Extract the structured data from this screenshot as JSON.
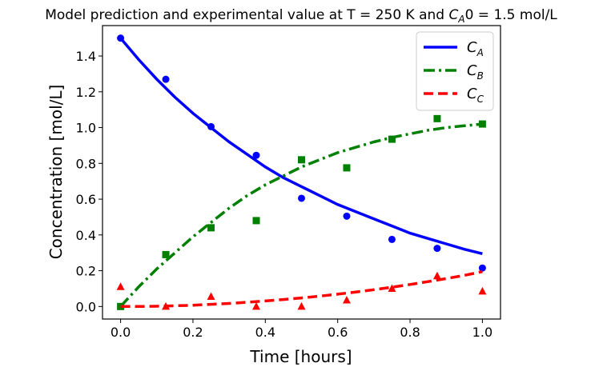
{
  "chart_data": {
    "type": "line",
    "title": "Model prediction and experimental value at T = 250 K and C_A0 = 1.5 mol/L",
    "title_parts": {
      "prefix": "Model prediction and experimental value at T = 250 K and ",
      "sym": "C",
      "sub": "A",
      "suffix": "0 = 1.5 mol/L"
    },
    "xlabel": "Time [hours]",
    "ylabel": "Concentration [mol/L]",
    "xlim": [
      -0.05,
      1.05
    ],
    "ylim": [
      -0.07,
      1.57
    ],
    "xticks": [
      0.0,
      0.2,
      0.4,
      0.6,
      0.8,
      1.0
    ],
    "xtick_labels": [
      "0.0",
      "0.2",
      "0.4",
      "0.6",
      "0.8",
      "1.0"
    ],
    "yticks": [
      0.0,
      0.2,
      0.4,
      0.6,
      0.8,
      1.0,
      1.2,
      1.4
    ],
    "ytick_labels": [
      "0.0",
      "0.2",
      "0.4",
      "0.6",
      "0.8",
      "1.0",
      "1.2",
      "1.4"
    ],
    "grid": false,
    "legend_position": "top-right",
    "model_x": [
      0.0,
      0.05,
      0.1,
      0.15,
      0.2,
      0.25,
      0.3,
      0.35,
      0.4,
      0.45,
      0.5,
      0.55,
      0.6,
      0.65,
      0.7,
      0.75,
      0.8,
      0.85,
      0.9,
      0.95,
      1.0
    ],
    "series": [
      {
        "name": "C_A",
        "sym": "C",
        "sub": "A",
        "color": "#0000ff",
        "dash": "solid",
        "marker": "circle",
        "model_y": [
          1.5,
          1.38,
          1.27,
          1.17,
          1.08,
          1.0,
          0.92,
          0.85,
          0.78,
          0.72,
          0.67,
          0.62,
          0.57,
          0.53,
          0.49,
          0.45,
          0.41,
          0.38,
          0.35,
          0.32,
          0.295
        ],
        "exp_x": [
          0.0,
          0.125,
          0.25,
          0.375,
          0.5,
          0.625,
          0.75,
          0.875,
          1.0
        ],
        "exp_y": [
          1.5,
          1.27,
          1.005,
          0.845,
          0.605,
          0.505,
          0.375,
          0.325,
          0.215
        ]
      },
      {
        "name": "C_B",
        "sym": "C",
        "sub": "B",
        "color": "#008000",
        "dash": "dashdot",
        "marker": "square",
        "model_y": [
          0.0,
          0.11,
          0.21,
          0.3,
          0.39,
          0.47,
          0.55,
          0.62,
          0.68,
          0.73,
          0.78,
          0.82,
          0.86,
          0.89,
          0.92,
          0.945,
          0.965,
          0.985,
          1.0,
          1.01,
          1.02
        ],
        "exp_x": [
          0.0,
          0.125,
          0.25,
          0.375,
          0.5,
          0.625,
          0.75,
          0.875,
          1.0
        ],
        "exp_y": [
          0.0,
          0.29,
          0.44,
          0.48,
          0.82,
          0.775,
          0.935,
          1.05,
          1.02
        ]
      },
      {
        "name": "C_C",
        "sym": "C",
        "sub": "C",
        "color": "#ff0000",
        "dash": "dashed",
        "marker": "triangle",
        "model_y": [
          0.0,
          0.0003,
          0.0015,
          0.004,
          0.007,
          0.012,
          0.017,
          0.024,
          0.031,
          0.039,
          0.048,
          0.058,
          0.069,
          0.081,
          0.094,
          0.108,
          0.123,
          0.139,
          0.156,
          0.174,
          0.195
        ],
        "exp_x": [
          0.0,
          0.125,
          0.25,
          0.375,
          0.5,
          0.625,
          0.75,
          0.875,
          1.0
        ],
        "exp_y": [
          0.11,
          0.0,
          0.055,
          0.0,
          0.0,
          0.035,
          0.1,
          0.17,
          0.085
        ]
      }
    ]
  }
}
